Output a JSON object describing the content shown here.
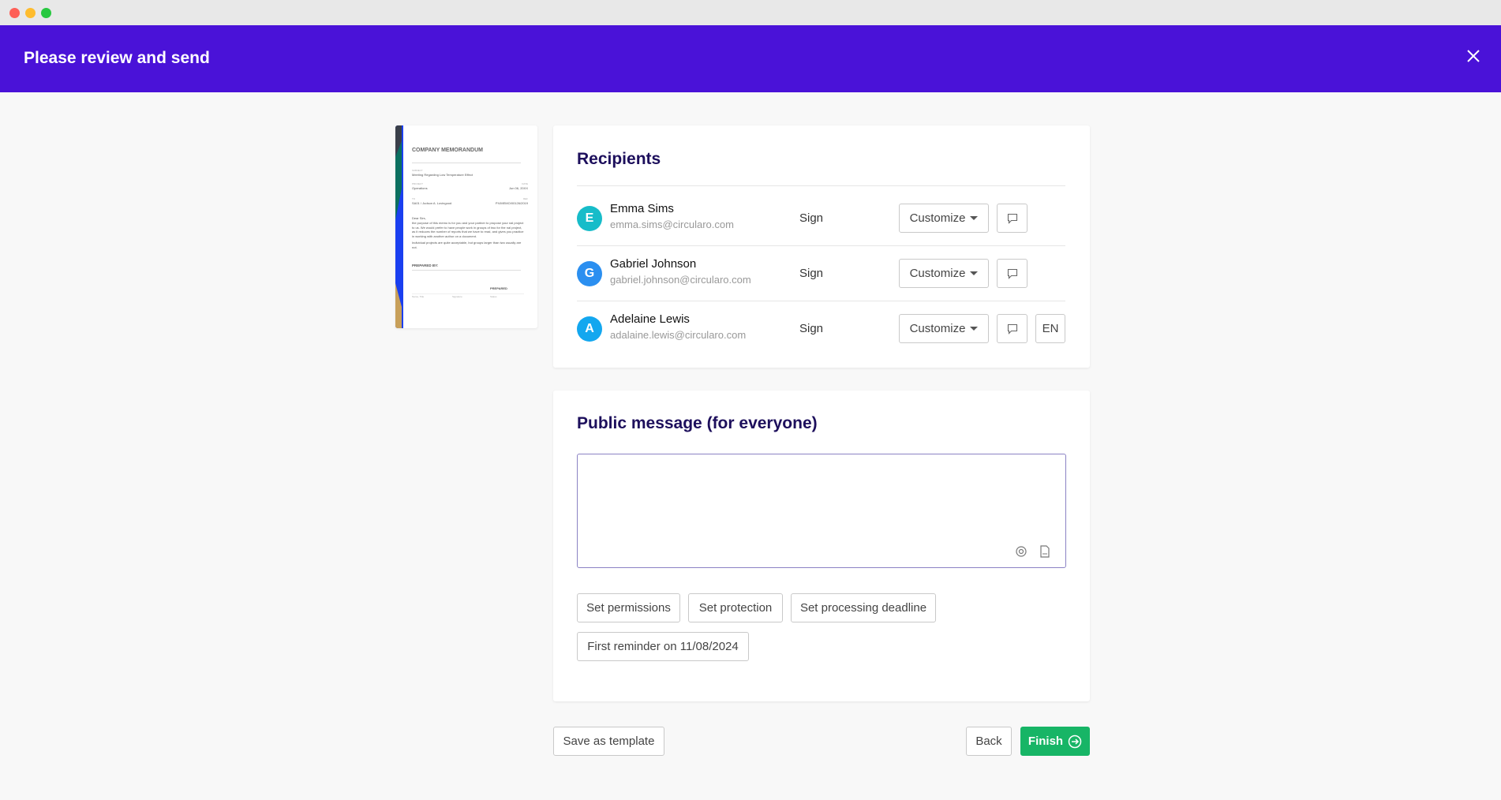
{
  "header": {
    "title": "Please review and send",
    "close_icon": "close-icon"
  },
  "document_preview": {
    "title": "COMPANY MEMORANDUM",
    "subject_label": "SUBJECT",
    "subject": "Meeting Regarding Low Temperature Effect",
    "project_label": "PROJECT",
    "project": "Operations",
    "date_label": "DATE",
    "date": "Jun 06, 20XX",
    "to_label": "TO",
    "to": "SA01 / Judson A. Lovingood",
    "ref_label": "REF",
    "ref": "PX/MEMO/00126/2019",
    "body1": "Dear Sirs,",
    "body2": "the purpose of this memo is for you and your partner to propose your nal project to us. We would prefer to have people work in groups of two for the nal project, as it reduces the number of reports that we have to read, and gives you practice in working with another author on a document.",
    "body3": "Individual projects are quite acceptable, but groups larger than two usually are not.",
    "prepared_by": "PREPARED BY:",
    "prepared": "PREPARED",
    "sig_labels": [
      "Name, Title",
      "Signature",
      "Status"
    ]
  },
  "recipients": {
    "title": "Recipients",
    "items": [
      {
        "initial": "E",
        "name": "Emma Sims",
        "email": "emma.sims@circularo.com",
        "role": "Sign",
        "customize": "Customize",
        "color": "#17bcc9"
      },
      {
        "initial": "G",
        "name": "Gabriel Johnson",
        "email": "gabriel.johnson@circularo.com",
        "role": "Sign",
        "customize": "Customize",
        "color": "#2b8ff0"
      },
      {
        "initial": "A",
        "name": "Adelaine Lewis",
        "email": "adalaine.lewis@circularo.com",
        "role": "Sign",
        "customize": "Customize",
        "color": "#13a7ef",
        "language": "EN"
      }
    ]
  },
  "public_message": {
    "title": "Public message (for everyone)",
    "value": "",
    "buttons": [
      "Set permissions",
      "Set protection",
      "Set processing deadline"
    ],
    "reminder": "First reminder on 11/08/2024"
  },
  "footer": {
    "save_template": "Save as template",
    "back": "Back",
    "finish": "Finish"
  },
  "colors": {
    "header": "#4a12d8",
    "finish": "#17b566",
    "heading": "#1d0f5c"
  }
}
